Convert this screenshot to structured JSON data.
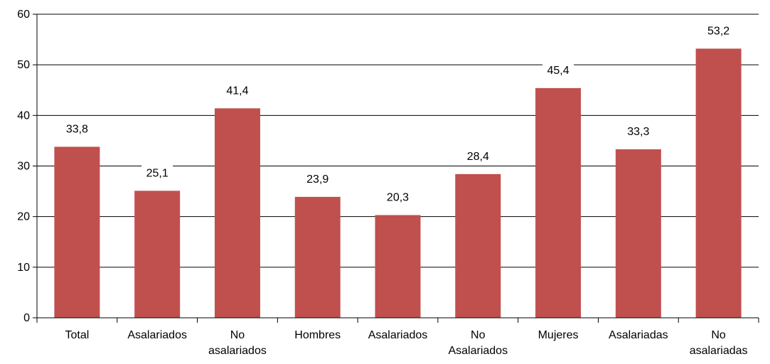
{
  "chart_data": {
    "type": "bar",
    "categories": [
      [
        "Total"
      ],
      [
        "Asalariados"
      ],
      [
        "No",
        "asalariados"
      ],
      [
        "Hombres"
      ],
      [
        "Asalariados"
      ],
      [
        "No",
        "Asalariados"
      ],
      [
        "Mujeres"
      ],
      [
        "Asalariadas"
      ],
      [
        "No",
        "asalariadas"
      ]
    ],
    "values": [
      33.8,
      25.1,
      41.4,
      23.9,
      20.3,
      28.4,
      45.4,
      33.3,
      53.2
    ],
    "data_labels": [
      "33,8",
      "25,1",
      "41,4",
      "23,9",
      "20,3",
      "28,4",
      "45,4",
      "33,3",
      "53,2"
    ],
    "ylim": [
      0,
      60
    ],
    "yticks": [
      0,
      10,
      20,
      30,
      40,
      50,
      60
    ],
    "grid": true,
    "bar_color": "#c0504d",
    "grid_color": "#000000"
  }
}
